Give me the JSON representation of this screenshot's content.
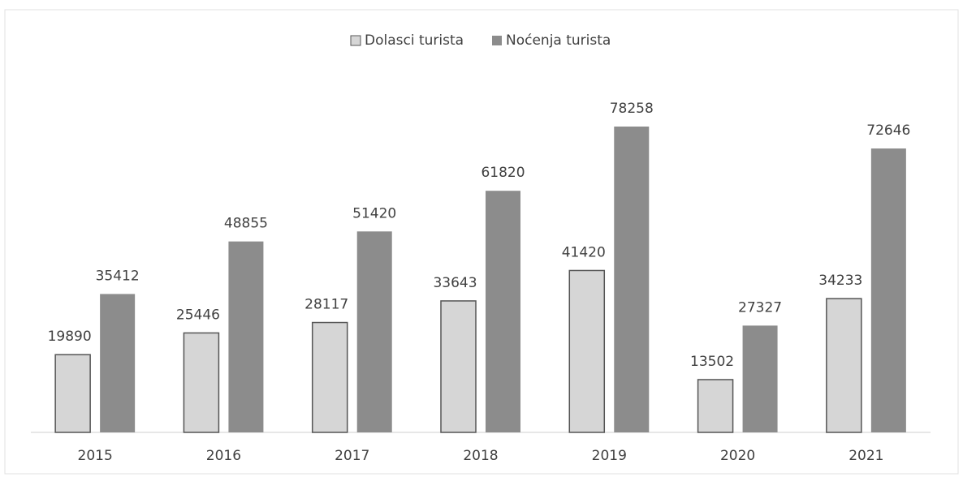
{
  "chart_data": {
    "type": "bar",
    "categories": [
      "2015",
      "2016",
      "2017",
      "2018",
      "2019",
      "2020",
      "2021"
    ],
    "series": [
      {
        "name": "Dolasci turista",
        "color": "#d6d6d6",
        "values": [
          19890,
          25446,
          28117,
          33643,
          41420,
          13502,
          34233
        ]
      },
      {
        "name": "Noćenja turista",
        "color": "#8c8c8c",
        "values": [
          35412,
          48855,
          51420,
          61820,
          78258,
          27327,
          72646
        ]
      }
    ],
    "legend": "top"
  }
}
